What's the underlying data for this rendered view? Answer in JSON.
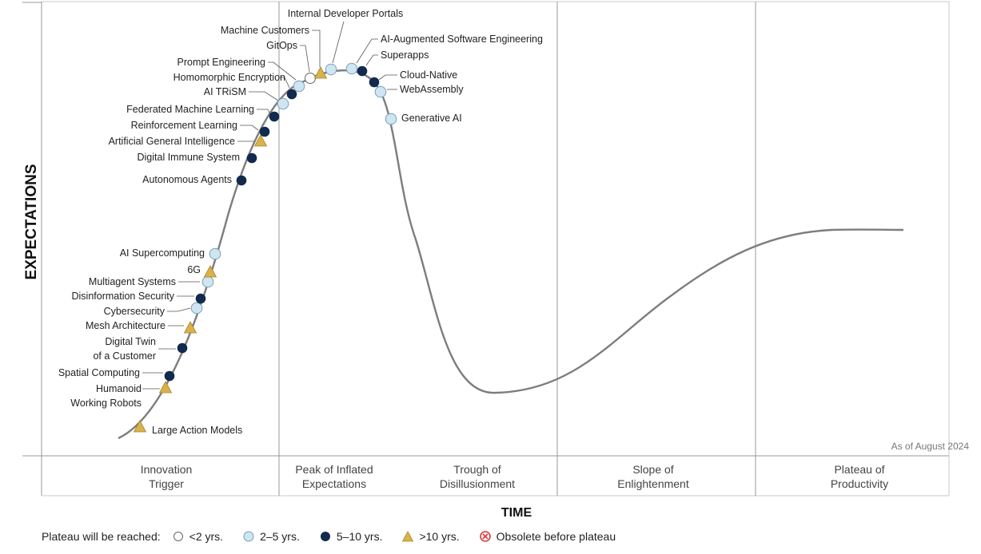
{
  "chart_data": {
    "type": "hype-cycle",
    "as_of": "As of August 2024",
    "ylabel": "EXPECTATIONS",
    "xlabel": "TIME",
    "phases": [
      {
        "name": "phase-innovation-trigger",
        "lines": [
          "Innovation",
          "Trigger"
        ]
      },
      {
        "name": "phase-peak",
        "lines": [
          "Peak of Inflated",
          "Expectations"
        ]
      },
      {
        "name": "phase-trough",
        "lines": [
          "Trough of",
          "Disillusionment"
        ]
      },
      {
        "name": "phase-slope",
        "lines": [
          "Slope of",
          "Enlightenment"
        ]
      },
      {
        "name": "phase-plateau",
        "lines": [
          "Plateau of",
          "Productivity"
        ]
      }
    ],
    "legend": {
      "title": "Plateau will be reached:",
      "items": [
        {
          "key": "lt2",
          "label": "<2 yrs."
        },
        {
          "key": "2to5",
          "label": "2–5 yrs."
        },
        {
          "key": "5to10",
          "label": "5–10 yrs."
        },
        {
          "key": "gt10",
          "label": ">10 yrs."
        },
        {
          "key": "obsolete",
          "label": "Obsolete before plateau"
        }
      ]
    },
    "technologies": [
      {
        "name": "Large Action Models",
        "phase": "Innovation Trigger",
        "plateau": "gt10"
      },
      {
        "name": "Humanoid Working Robots",
        "phase": "Innovation Trigger",
        "plateau": "gt10"
      },
      {
        "name": "Spatial Computing",
        "phase": "Innovation Trigger",
        "plateau": "5to10"
      },
      {
        "name": "Digital Twin of a Customer",
        "phase": "Innovation Trigger",
        "plateau": "5to10"
      },
      {
        "name": "Mesh Architecture",
        "phase": "Innovation Trigger",
        "plateau": "gt10"
      },
      {
        "name": "Cybersecurity",
        "phase": "Innovation Trigger",
        "plateau": "2to5"
      },
      {
        "name": "Disinformation Security",
        "phase": "Innovation Trigger",
        "plateau": "5to10"
      },
      {
        "name": "Multiagent Systems",
        "phase": "Innovation Trigger",
        "plateau": "2to5"
      },
      {
        "name": "6G",
        "phase": "Innovation Trigger",
        "plateau": "gt10"
      },
      {
        "name": "AI Supercomputing",
        "phase": "Innovation Trigger",
        "plateau": "2to5"
      },
      {
        "name": "Autonomous Agents",
        "phase": "Innovation Trigger",
        "plateau": "5to10"
      },
      {
        "name": "Digital Immune System",
        "phase": "Innovation Trigger",
        "plateau": "5to10"
      },
      {
        "name": "Artificial General Intelligence",
        "phase": "Innovation Trigger",
        "plateau": "gt10"
      },
      {
        "name": "Reinforcement Learning",
        "phase": "Innovation Trigger",
        "plateau": "5to10"
      },
      {
        "name": "Federated Machine Learning",
        "phase": "Innovation Trigger",
        "plateau": "5to10"
      },
      {
        "name": "AI TRiSM",
        "phase": "Peak of Inflated Expectations",
        "plateau": "2to5"
      },
      {
        "name": "Homomorphic Encryption",
        "phase": "Peak of Inflated Expectations",
        "plateau": "5to10"
      },
      {
        "name": "Prompt Engineering",
        "phase": "Peak of Inflated Expectations",
        "plateau": "2to5"
      },
      {
        "name": "GitOps",
        "phase": "Peak of Inflated Expectations",
        "plateau": "lt2"
      },
      {
        "name": "Machine Customers",
        "phase": "Peak of Inflated Expectations",
        "plateau": "gt10"
      },
      {
        "name": "Internal Developer Portals",
        "phase": "Peak of Inflated Expectations",
        "plateau": "2to5"
      },
      {
        "name": "AI-Augmented Software Engineering",
        "phase": "Peak of Inflated Expectations",
        "plateau": "2to5"
      },
      {
        "name": "Superapps",
        "phase": "Peak of Inflated Expectations",
        "plateau": "5to10"
      },
      {
        "name": "Cloud-Native",
        "phase": "Peak of Inflated Expectations",
        "plateau": "5to10"
      },
      {
        "name": "WebAssembly",
        "phase": "Peak of Inflated Expectations",
        "plateau": "2to5"
      },
      {
        "name": "Generative AI",
        "phase": "Peak of Inflated Expectations",
        "plateau": "2to5"
      }
    ]
  },
  "colors": {
    "lt2": "#ffffff",
    "2to5": "#cfe5f2",
    "5to10": "#112a4d",
    "gt10": "#d9b24a",
    "obsolete": "#d83a3a",
    "curve": "#7d7d7d",
    "grid": "#9a9a9a"
  }
}
